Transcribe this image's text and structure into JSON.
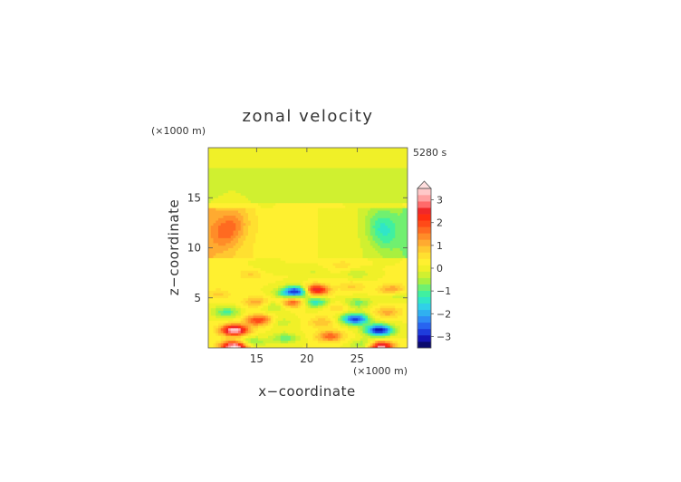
{
  "chart_data": {
    "type": "heatmap",
    "title": "zonal velocity",
    "time_label": "5280 s",
    "xlabel": "x−coordinate",
    "ylabel": "z−coordinate",
    "x_unit": "(×1000 m)",
    "y_unit": "(×1000 m)",
    "xlim": [
      10.2,
      30
    ],
    "ylim": [
      0,
      20
    ],
    "x_ticks": [
      "15",
      "20",
      "25"
    ],
    "x_tick_values": [
      15,
      20,
      25
    ],
    "y_ticks": [
      "5",
      "10",
      "15"
    ],
    "y_tick_values": [
      5,
      10,
      15
    ],
    "colorbar": {
      "min": -3.5,
      "max": 3.5,
      "step": 0.25,
      "extend": "max",
      "tick_labels": [
        "3",
        "2",
        "1",
        "0",
        "−1",
        "−2",
        "−3"
      ],
      "tick_values": [
        3,
        2,
        1,
        0,
        -1,
        -2,
        -3
      ],
      "colors": [
        "#0a0a6e",
        "#1414b4",
        "#1e3cdc",
        "#2864f0",
        "#2f8cf5",
        "#30b0f0",
        "#30d0e8",
        "#30e6c8",
        "#40f0a0",
        "#70f070",
        "#a8f040",
        "#d0f030",
        "#f0f028",
        "#fff030",
        "#ffe030",
        "#ffc830",
        "#ffaa30",
        "#ff8c28",
        "#ff6a20",
        "#ff4a18",
        "#ff2e10",
        "#f02828",
        "#ff6a6a",
        "#ffa0a0",
        "#ffc8c8"
      ],
      "over_color": "#ffdede"
    },
    "features": [
      {
        "x": 12.8,
        "z": 0.15,
        "value": 3.5
      },
      {
        "x": 12.8,
        "z": 1.8,
        "value": 3.4
      },
      {
        "x": 15.2,
        "z": 2.8,
        "value": 2.0
      },
      {
        "x": 17.3,
        "z": 2.6,
        "value": -0.5
      },
      {
        "x": 17.8,
        "z": 1.0,
        "value": -1.0
      },
      {
        "x": 18.6,
        "z": 4.6,
        "value": 1.8
      },
      {
        "x": 19.2,
        "z": 5.7,
        "value": -3.2
      },
      {
        "x": 18.0,
        "z": 5.4,
        "value": -1.0
      },
      {
        "x": 16.8,
        "z": 4.2,
        "value": -0.8
      },
      {
        "x": 15.0,
        "z": 4.6,
        "value": 1.0
      },
      {
        "x": 12.0,
        "z": 3.6,
        "value": -1.2
      },
      {
        "x": 14.5,
        "z": 0.6,
        "value": -1.0
      },
      {
        "x": 11.2,
        "z": 5.4,
        "value": 0.6
      },
      {
        "x": 20.7,
        "z": 5.8,
        "value": 3.2
      },
      {
        "x": 20.8,
        "z": 4.6,
        "value": -1.6
      },
      {
        "x": 21.5,
        "z": 2.6,
        "value": 0.8
      },
      {
        "x": 22.3,
        "z": 1.2,
        "value": 1.6
      },
      {
        "x": 23.0,
        "z": 4.1,
        "value": 0.6
      },
      {
        "x": 24.8,
        "z": 2.9,
        "value": -3.0
      },
      {
        "x": 25.0,
        "z": 4.5,
        "value": -1.0
      },
      {
        "x": 27.2,
        "z": 1.8,
        "value": -3.4
      },
      {
        "x": 27.2,
        "z": 0.15,
        "value": 3.5
      },
      {
        "x": 26.0,
        "z": 0.3,
        "value": -1.5
      },
      {
        "x": 28.0,
        "z": 3.6,
        "value": 1.0
      },
      {
        "x": 28.9,
        "z": 5.4,
        "value": -0.8
      },
      {
        "x": 28.5,
        "z": 5.8,
        "value": 1.4
      },
      {
        "x": 24.5,
        "z": 6.2,
        "value": 0.6
      },
      {
        "x": 25.0,
        "z": 7.4,
        "value": -0.5
      },
      {
        "x": 14.5,
        "z": 7.4,
        "value": 0.6
      },
      {
        "x": 23.5,
        "z": 8.3,
        "value": 0.4
      },
      {
        "x": 16.0,
        "z": 8.0,
        "value": -0.3
      },
      {
        "x": 20.5,
        "z": 7.6,
        "value": -0.3
      },
      {
        "x": 27.8,
        "z": 11.5,
        "value": -0.7
      },
      {
        "x": 11.8,
        "z": 11.5,
        "value": 0.8
      },
      {
        "x": 13.0,
        "z": 12.5,
        "value": 0.6
      },
      {
        "x": 27.0,
        "z": 12.5,
        "value": -0.5
      },
      {
        "x": 15.5,
        "z": 16.6,
        "value": -0.2
      },
      {
        "x": 25.0,
        "z": 16.6,
        "value": -0.2
      }
    ]
  }
}
